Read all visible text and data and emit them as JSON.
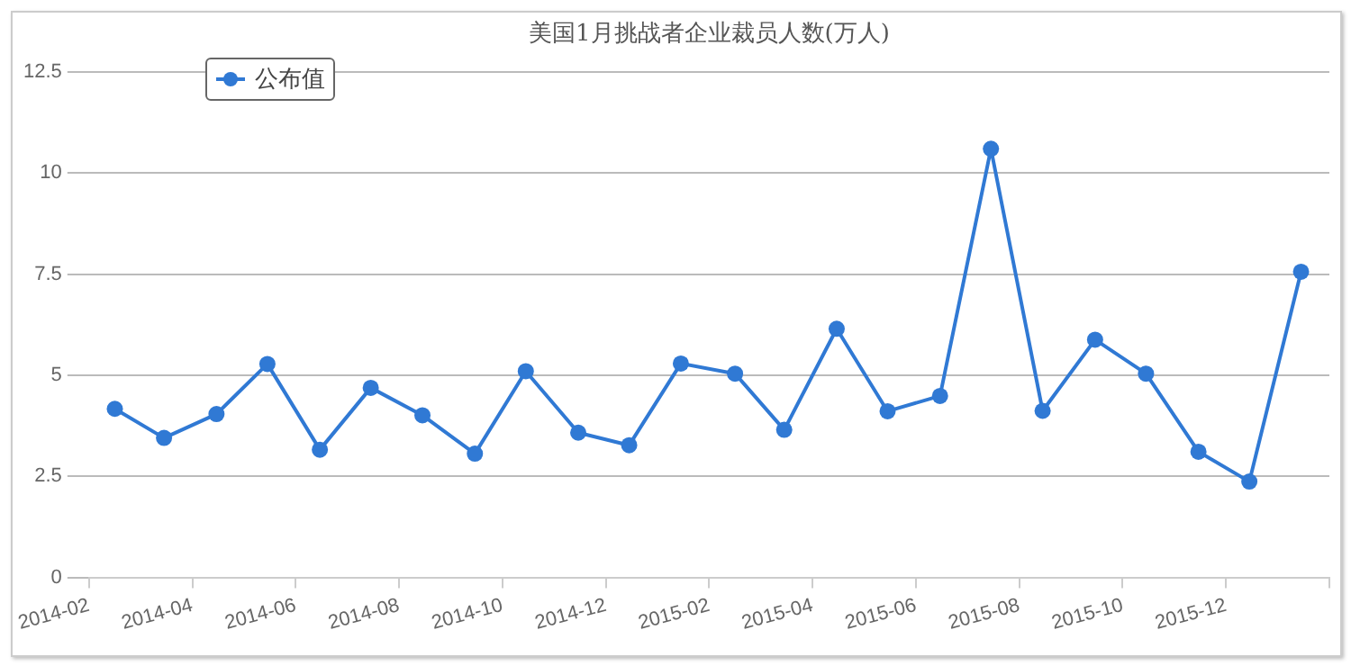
{
  "chart_data": {
    "type": "line",
    "title": "美国1月挑战者企业裁员人数(万人)",
    "x": [
      "2014-02-15",
      "2014-03-15",
      "2014-04-15",
      "2014-05-15",
      "2014-06-15",
      "2014-07-15",
      "2014-08-15",
      "2014-09-15",
      "2014-10-15",
      "2014-11-15",
      "2014-12-15",
      "2015-01-15",
      "2015-02-15",
      "2015-03-15",
      "2015-04-15",
      "2015-05-15",
      "2015-06-15",
      "2015-07-15",
      "2015-08-15",
      "2015-09-15",
      "2015-10-15",
      "2015-11-15",
      "2015-12-15",
      "2016-01-15"
    ],
    "series": [
      {
        "name": "公布值",
        "color": "#3079d4",
        "values": [
          4.17,
          3.45,
          4.04,
          5.28,
          3.16,
          4.69,
          4.01,
          3.06,
          5.1,
          3.58,
          3.27,
          5.29,
          5.04,
          3.65,
          6.15,
          4.11,
          4.49,
          10.6,
          4.12,
          5.88,
          5.04,
          3.11,
          2.37,
          7.56
        ]
      }
    ],
    "xlim": [
      "2014-02",
      "2016-02"
    ],
    "xticks": [
      "2014-02",
      "2014-04",
      "2014-06",
      "2014-08",
      "2014-10",
      "2014-12",
      "2015-02",
      "2015-04",
      "2015-06",
      "2015-08",
      "2015-10",
      "2015-12",
      {
        "value": "2016-02",
        "label": null
      }
    ],
    "ylim": [
      0,
      12.5
    ],
    "yticks": [
      0,
      2.5,
      5,
      7.5,
      10,
      12.5
    ],
    "grid": "y",
    "legend": "top left",
    "marker": "circle",
    "line_style": "solid"
  }
}
